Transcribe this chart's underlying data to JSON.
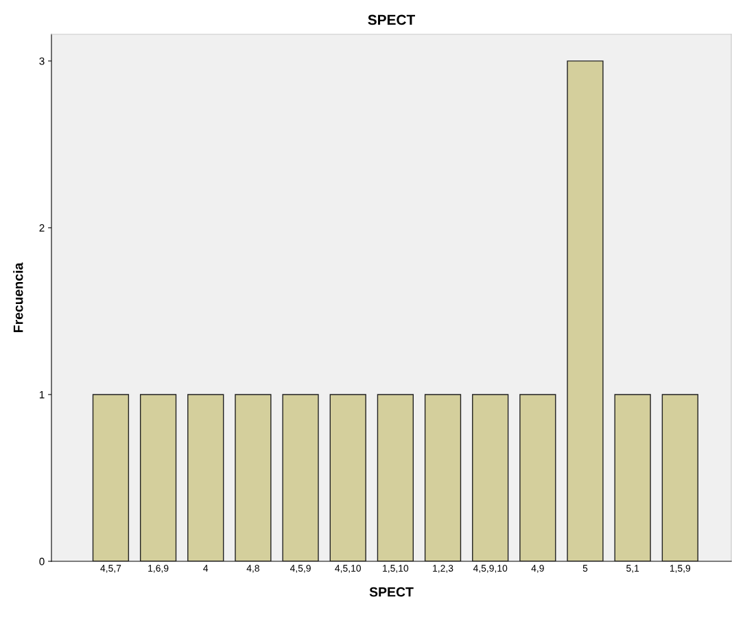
{
  "chart_data": {
    "type": "bar",
    "title": "SPECT",
    "xlabel": "SPECT",
    "ylabel": "Frecuencia",
    "categories": [
      "4,5,7",
      "1,6,9",
      "4",
      "4,8",
      "4,5,9",
      "4,5,10",
      "1,5,10",
      "1,2,3",
      "4,5,9,10",
      "4,9",
      "5",
      "5,1",
      "1,5,9"
    ],
    "values": [
      1,
      1,
      1,
      1,
      1,
      1,
      1,
      1,
      1,
      1,
      3,
      1,
      1
    ],
    "color": "#d4cf9c",
    "ylim": [
      0,
      3.16
    ],
    "yticks": [
      0,
      1,
      2,
      3
    ],
    "grid": false
  }
}
